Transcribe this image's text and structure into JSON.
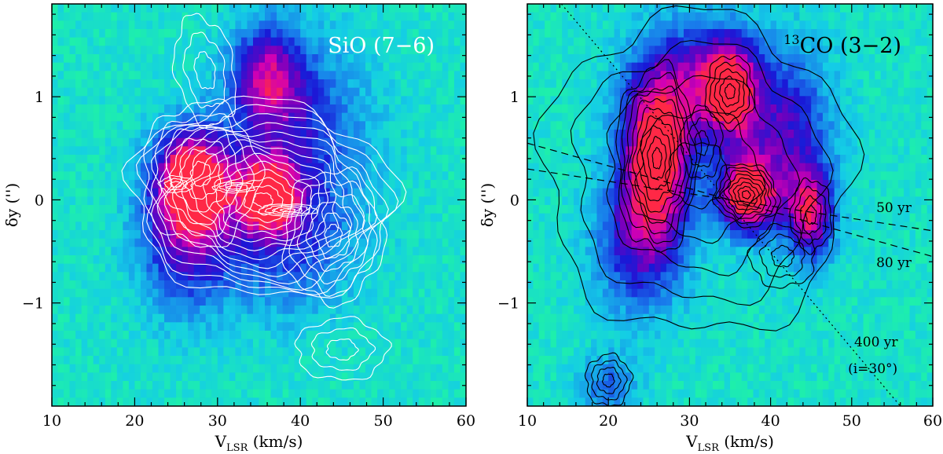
{
  "chart_data": [
    {
      "type": "heatmap",
      "title": "SiO (7−6)",
      "title_color": "#ffffff",
      "contour_color": "#ffffff",
      "xlabel": {
        "main": "V",
        "sub": "LSR",
        "unit": " (km/s)"
      },
      "ylabel": "δy ('')",
      "xlim": [
        10,
        60
      ],
      "ylim": [
        -2.0,
        1.9
      ],
      "xticks": [
        10,
        20,
        30,
        40,
        50,
        60
      ],
      "yticks": [
        -1,
        0,
        1
      ],
      "ytick_labels": [
        "−1",
        "0",
        "1"
      ],
      "blobs": [
        {
          "x": 27,
          "y": 0.2,
          "sx": 3.2,
          "sy": 0.35,
          "w": 1.0
        },
        {
          "x": 36,
          "y": 0.05,
          "sx": 2.5,
          "sy": 0.25,
          "w": 0.85
        },
        {
          "x": 36,
          "y": 1.2,
          "sx": 3.0,
          "sy": 0.35,
          "w": 0.6
        },
        {
          "x": 26,
          "y": -0.4,
          "sx": 4.0,
          "sy": 0.5,
          "w": 0.5
        },
        {
          "x": 40,
          "y": 0.7,
          "sx": 6.0,
          "sy": 0.6,
          "w": 0.4
        },
        {
          "x": 38,
          "y": -0.4,
          "sx": 6.0,
          "sy": 0.5,
          "w": 0.4
        }
      ],
      "contours": [
        {
          "x": 35.5,
          "y": 0.0,
          "dx": 16,
          "dy": 0.95,
          "rot": -0.06,
          "n": 14
        },
        {
          "x": 28,
          "y": 0.25,
          "dx": 7,
          "dy": 0.7,
          "rot": -0.1,
          "n": 6
        },
        {
          "x": 44,
          "y": -0.35,
          "dx": 6,
          "dy": 0.65,
          "rot": -0.08,
          "n": 6
        },
        {
          "x": 38.5,
          "y": -0.1,
          "dx": 3.5,
          "dy": 0.06,
          "rot": 0,
          "n": 4
        },
        {
          "x": 32,
          "y": 0.12,
          "dx": 2.5,
          "dy": 0.05,
          "rot": 0,
          "n": 3
        },
        {
          "x": 25,
          "y": 0.15,
          "dx": 2.0,
          "dy": 0.08,
          "rot": 0,
          "n": 3
        },
        {
          "x": 28.5,
          "y": 1.25,
          "dx": 3.5,
          "dy": 0.55,
          "rot": 0.3,
          "n": 3
        },
        {
          "x": 45,
          "y": -1.45,
          "dx": 5.5,
          "dy": 0.3,
          "rot": 0,
          "n": 3
        }
      ],
      "annotations": []
    },
    {
      "type": "heatmap",
      "title": "CO (3−2)",
      "title_sup": "13",
      "title_color": "#000000",
      "contour_color": "#000000",
      "xlabel": {
        "main": "V",
        "sub": "LSR",
        "unit": " (km/s)"
      },
      "ylabel": "δy ('')",
      "xlim": [
        10,
        60
      ],
      "ylim": [
        -2.0,
        1.9
      ],
      "xticks": [
        10,
        20,
        30,
        40,
        50,
        60
      ],
      "yticks": [
        -1,
        0,
        1
      ],
      "ytick_labels": [
        "−1",
        "0",
        "1"
      ],
      "blobs": [
        {
          "x": 26,
          "y": 0.45,
          "sx": 3.0,
          "sy": 0.5,
          "w": 1.0
        },
        {
          "x": 37,
          "y": 0.05,
          "sx": 2.5,
          "sy": 0.25,
          "w": 1.0
        },
        {
          "x": 35,
          "y": 1.05,
          "sx": 2.5,
          "sy": 0.35,
          "w": 0.85
        },
        {
          "x": 45,
          "y": -0.15,
          "sx": 2.0,
          "sy": 0.3,
          "w": 0.7
        },
        {
          "x": 24,
          "y": -0.4,
          "sx": 4.0,
          "sy": 0.5,
          "w": 0.55
        },
        {
          "x": 42,
          "y": 0.6,
          "sx": 4.0,
          "sy": 0.6,
          "w": 0.55
        },
        {
          "x": 30,
          "y": 1.2,
          "sx": 5.0,
          "sy": 0.4,
          "w": 0.5
        },
        {
          "x": 20,
          "y": -1.8,
          "sx": 2.5,
          "sy": 0.2,
          "w": 0.35
        }
      ],
      "contours": [
        {
          "x": 31,
          "y": 0.25,
          "dx": 19,
          "dy": 1.55,
          "rot": -0.05,
          "n": 5
        },
        {
          "x": 26,
          "y": 0.4,
          "dx": 5,
          "dy": 0.9,
          "rot": 0,
          "n": 9
        },
        {
          "x": 37,
          "y": 0.05,
          "dx": 4,
          "dy": 0.3,
          "rot": -0.2,
          "n": 8
        },
        {
          "x": 35,
          "y": 1.05,
          "dx": 3,
          "dy": 0.35,
          "rot": 0,
          "n": 5
        },
        {
          "x": 45,
          "y": -0.15,
          "dx": 2.5,
          "dy": 0.35,
          "rot": 0,
          "n": 4
        },
        {
          "x": 41.5,
          "y": -0.55,
          "dx": 4,
          "dy": 0.3,
          "rot": 0,
          "n": 3
        },
        {
          "x": 31.5,
          "y": 0.55,
          "dx": 2.5,
          "dy": 0.35,
          "rot": 0,
          "n": 3
        },
        {
          "x": 20,
          "y": -1.75,
          "dx": 2.8,
          "dy": 0.25,
          "rot": 0,
          "n": 4
        }
      ],
      "guide_lines": [
        {
          "style": "dotted",
          "x1": 14.2,
          "y1": 1.9,
          "x2": 56.0,
          "y2": -2.0
        },
        {
          "style": "dashed",
          "x1": 10,
          "y1": 0.3,
          "x2": 60,
          "y2": -0.3
        },
        {
          "style": "dashed",
          "x1": 10,
          "y1": 0.55,
          "x2": 60,
          "y2": -0.55
        }
      ],
      "annotations": [
        {
          "text": "50 yr",
          "x": 55.2,
          "y": -0.12
        },
        {
          "text": "80 yr",
          "x": 55.2,
          "y": -0.65
        },
        {
          "text": "400 yr",
          "x": 53.0,
          "y": -1.42
        },
        {
          "text": "(i=30°)",
          "x": 52.6,
          "y": -1.68
        }
      ]
    }
  ]
}
